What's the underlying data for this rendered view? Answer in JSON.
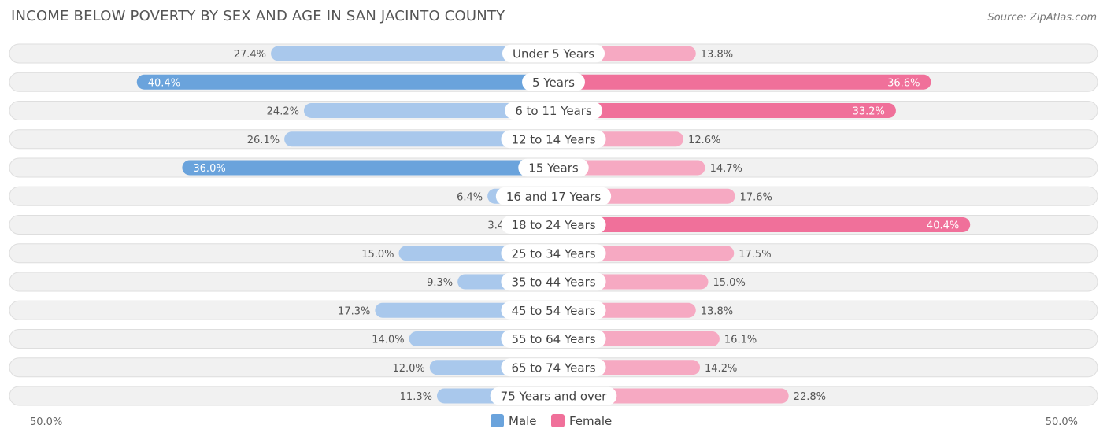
{
  "chart_data": {
    "type": "bar",
    "orientation": "horizontal-diverging",
    "title": "INCOME BELOW POVERTY BY SEX AND AGE IN SAN JACINTO COUNTY",
    "source": "Source: ZipAtlas.com",
    "categories": [
      "Under 5 Years",
      "5 Years",
      "6 to 11 Years",
      "12 to 14 Years",
      "15 Years",
      "16 and 17 Years",
      "18 to 24 Years",
      "25 to 34 Years",
      "35 to 44 Years",
      "45 to 54 Years",
      "55 to 64 Years",
      "65 to 74 Years",
      "75 Years and over"
    ],
    "series": [
      {
        "name": "Male",
        "values": [
          27.4,
          40.4,
          24.2,
          26.1,
          36.0,
          6.4,
          3.4,
          15.0,
          9.3,
          17.3,
          14.0,
          12.0,
          11.3
        ]
      },
      {
        "name": "Female",
        "values": [
          13.8,
          36.6,
          33.2,
          12.6,
          14.7,
          17.6,
          40.4,
          17.5,
          15.0,
          13.8,
          16.1,
          14.2,
          22.8
        ]
      }
    ],
    "value_labels": {
      "male": [
        "27.4%",
        "40.4%",
        "24.2%",
        "26.1%",
        "36.0%",
        "6.4%",
        "3.4%",
        "15.0%",
        "9.3%",
        "17.3%",
        "14.0%",
        "12.0%",
        "11.3%"
      ],
      "female": [
        "13.8%",
        "36.6%",
        "33.2%",
        "12.6%",
        "14.7%",
        "17.6%",
        "40.4%",
        "17.5%",
        "15.0%",
        "13.8%",
        "16.1%",
        "14.2%",
        "22.8%"
      ]
    },
    "xlim": [
      -50,
      50
    ],
    "axis_labels": {
      "left": "50.0%",
      "right": "50.0%"
    },
    "legend": {
      "position": "bottom-center",
      "items": [
        "Male",
        "Female"
      ]
    },
    "colors": {
      "male_strong": "#6aa3dc",
      "male_light": "#a9c8ec",
      "female_strong": "#f0709a",
      "female_light": "#f6a9c2",
      "row_bg": "#f1f1f1",
      "row_border": "#dedede"
    }
  }
}
